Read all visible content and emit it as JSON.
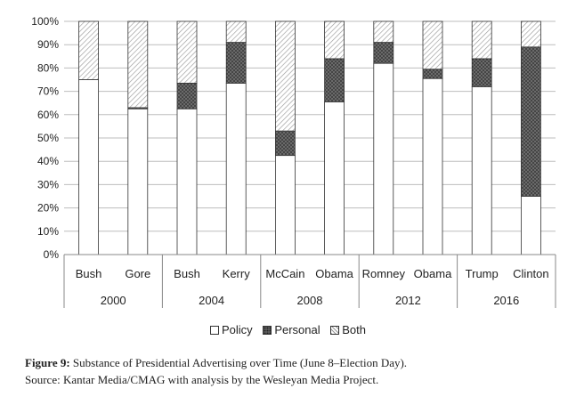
{
  "chart_data": {
    "type": "bar",
    "stacked": true,
    "percent": true,
    "ylim": [
      0,
      100
    ],
    "yticks": [
      "0%",
      "10%",
      "20%",
      "30%",
      "40%",
      "50%",
      "60%",
      "70%",
      "80%",
      "90%",
      "100%"
    ],
    "categories": [
      "Bush",
      "Gore",
      "Bush",
      "Kerry",
      "McCain",
      "Obama",
      "Romney",
      "Obama",
      "Trump",
      "Clinton"
    ],
    "groups": [
      {
        "label": "2000",
        "count": 2
      },
      {
        "label": "2004",
        "count": 2
      },
      {
        "label": "2008",
        "count": 2
      },
      {
        "label": "2012",
        "count": 2
      },
      {
        "label": "2016",
        "count": 2
      }
    ],
    "series": [
      {
        "name": "Policy",
        "pattern": "white",
        "values": [
          75,
          62.5,
          62.5,
          73.5,
          42.5,
          65.5,
          82,
          75.5,
          72,
          25
        ]
      },
      {
        "name": "Personal",
        "pattern": "dots",
        "values": [
          0,
          0.5,
          11,
          17.5,
          10.5,
          18.5,
          9,
          4,
          12,
          64
        ]
      },
      {
        "name": "Both",
        "pattern": "hatch",
        "values": [
          25,
          37,
          26.5,
          9,
          47,
          16,
          9,
          20.5,
          16,
          11
        ]
      }
    ]
  },
  "legend": {
    "policy": "Policy",
    "personal": "Personal",
    "both": "Both"
  },
  "caption": {
    "figure_label": "Figure 9:",
    "title": "Substance of Presidential Advertising over Time (June 8–Election Day).",
    "source": "Source: Kantar Media/CMAG with analysis by the Wesleyan Media Project."
  }
}
